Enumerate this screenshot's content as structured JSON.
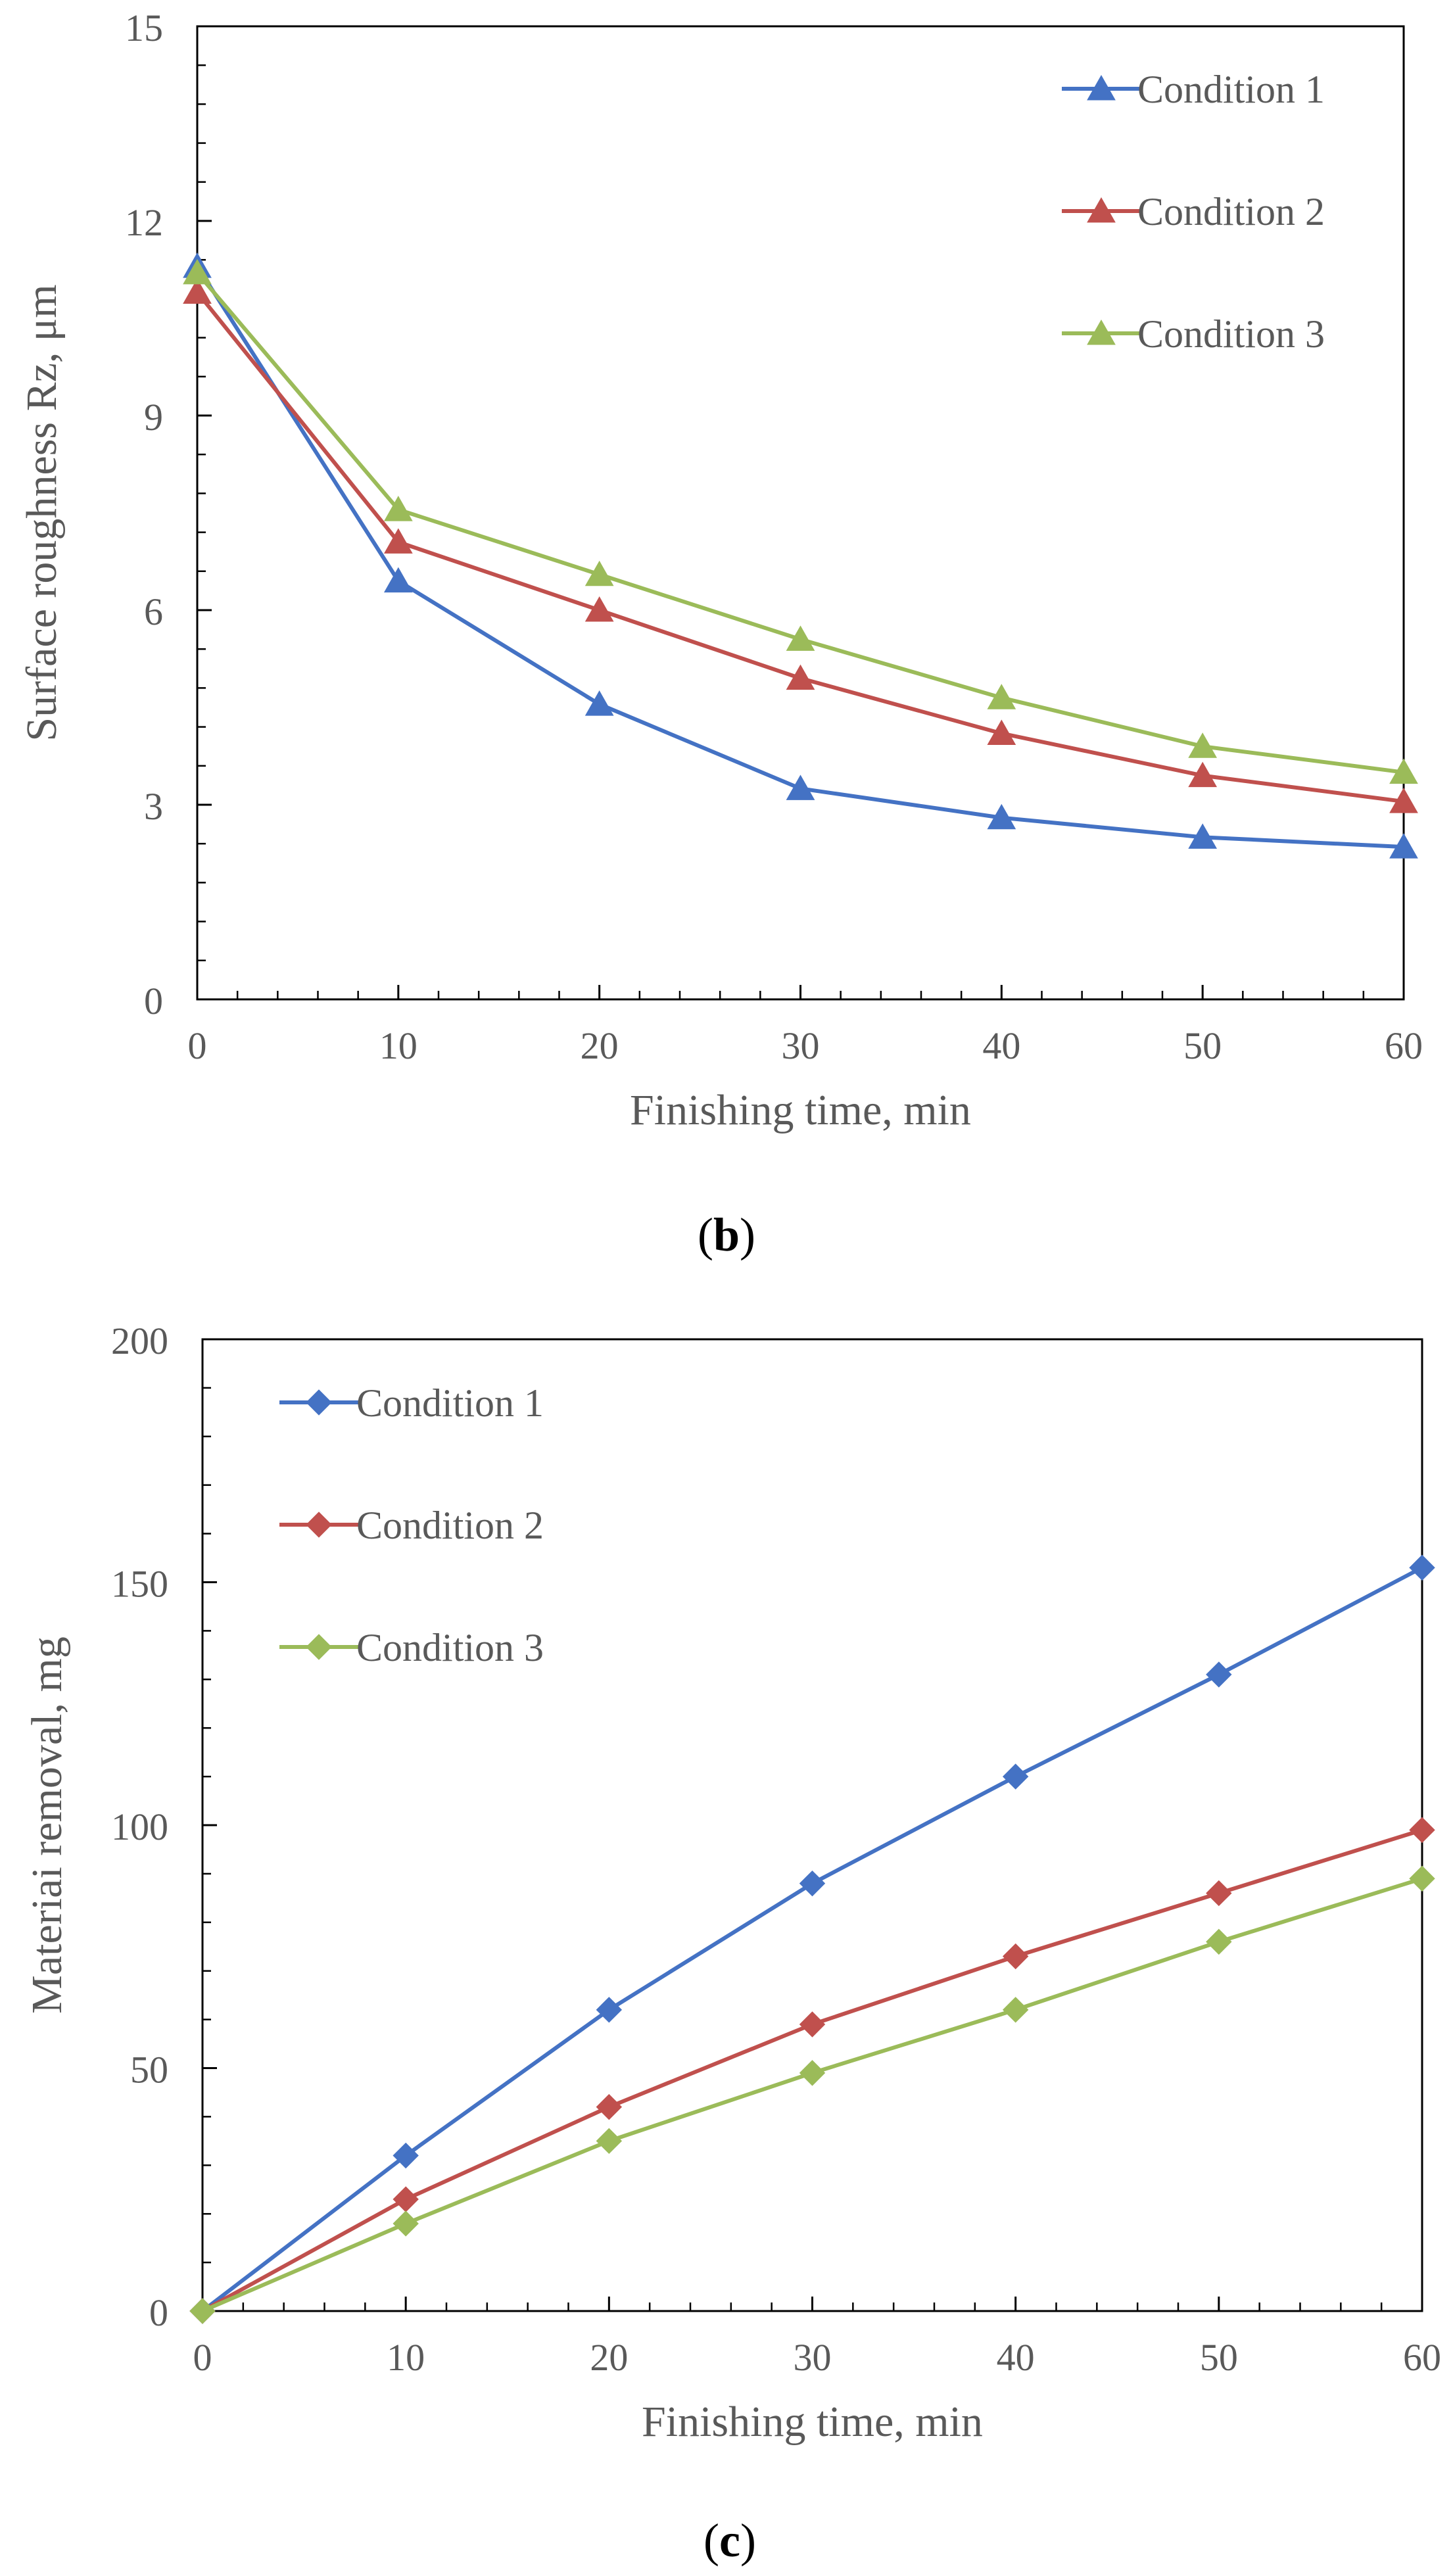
{
  "chart_data": [
    {
      "type": "line",
      "panel": "b",
      "title": "",
      "xlabel": "Finishing  time, min",
      "ylabel": "Surface  roughness  Rz, μm",
      "x": [
        0,
        10,
        20,
        30,
        40,
        50,
        60
      ],
      "xlim": [
        0,
        60
      ],
      "ylim": [
        0,
        15
      ],
      "xticks": [
        0,
        10,
        20,
        30,
        40,
        50,
        60
      ],
      "yticks": [
        0,
        3,
        6,
        9,
        12,
        15
      ],
      "marker": "triangle",
      "legend_position": "top-right",
      "series": [
        {
          "name": "Condition 1",
          "color": "#4472C4",
          "values": [
            11.3,
            6.45,
            4.55,
            3.25,
            2.8,
            2.5,
            2.35
          ]
        },
        {
          "name": "Condition 2",
          "color": "#C0504D",
          "values": [
            10.9,
            7.05,
            6.0,
            4.95,
            4.1,
            3.45,
            3.05
          ]
        },
        {
          "name": "Condition 3",
          "color": "#9BBB59",
          "values": [
            11.2,
            7.55,
            6.55,
            5.55,
            4.65,
            3.9,
            3.5
          ]
        }
      ]
    },
    {
      "type": "line",
      "panel": "c",
      "title": "",
      "xlabel": "Finishing  time, min",
      "ylabel": "Materiai  removal, mg",
      "x": [
        0,
        10,
        20,
        30,
        40,
        50,
        60
      ],
      "xlim": [
        0,
        60
      ],
      "ylim": [
        0,
        200
      ],
      "xticks": [
        0,
        10,
        20,
        30,
        40,
        50,
        60
      ],
      "yticks": [
        0,
        50,
        100,
        150,
        200
      ],
      "marker": "diamond",
      "legend_position": "top-left",
      "series": [
        {
          "name": "Condition 1",
          "color": "#4472C4",
          "values": [
            0,
            32,
            62,
            88,
            110,
            131,
            153
          ]
        },
        {
          "name": "Condition 2",
          "color": "#C0504D",
          "values": [
            0,
            23,
            42,
            59,
            73,
            86,
            99
          ]
        },
        {
          "name": "Condition 3",
          "color": "#9BBB59",
          "values": [
            0,
            18,
            35,
            49,
            62,
            76,
            89
          ]
        }
      ]
    }
  ],
  "captions": {
    "b": {
      "open": "(",
      "letter": "b",
      "close": ")"
    },
    "c": {
      "open": "(",
      "letter": "c",
      "close": ")"
    }
  }
}
